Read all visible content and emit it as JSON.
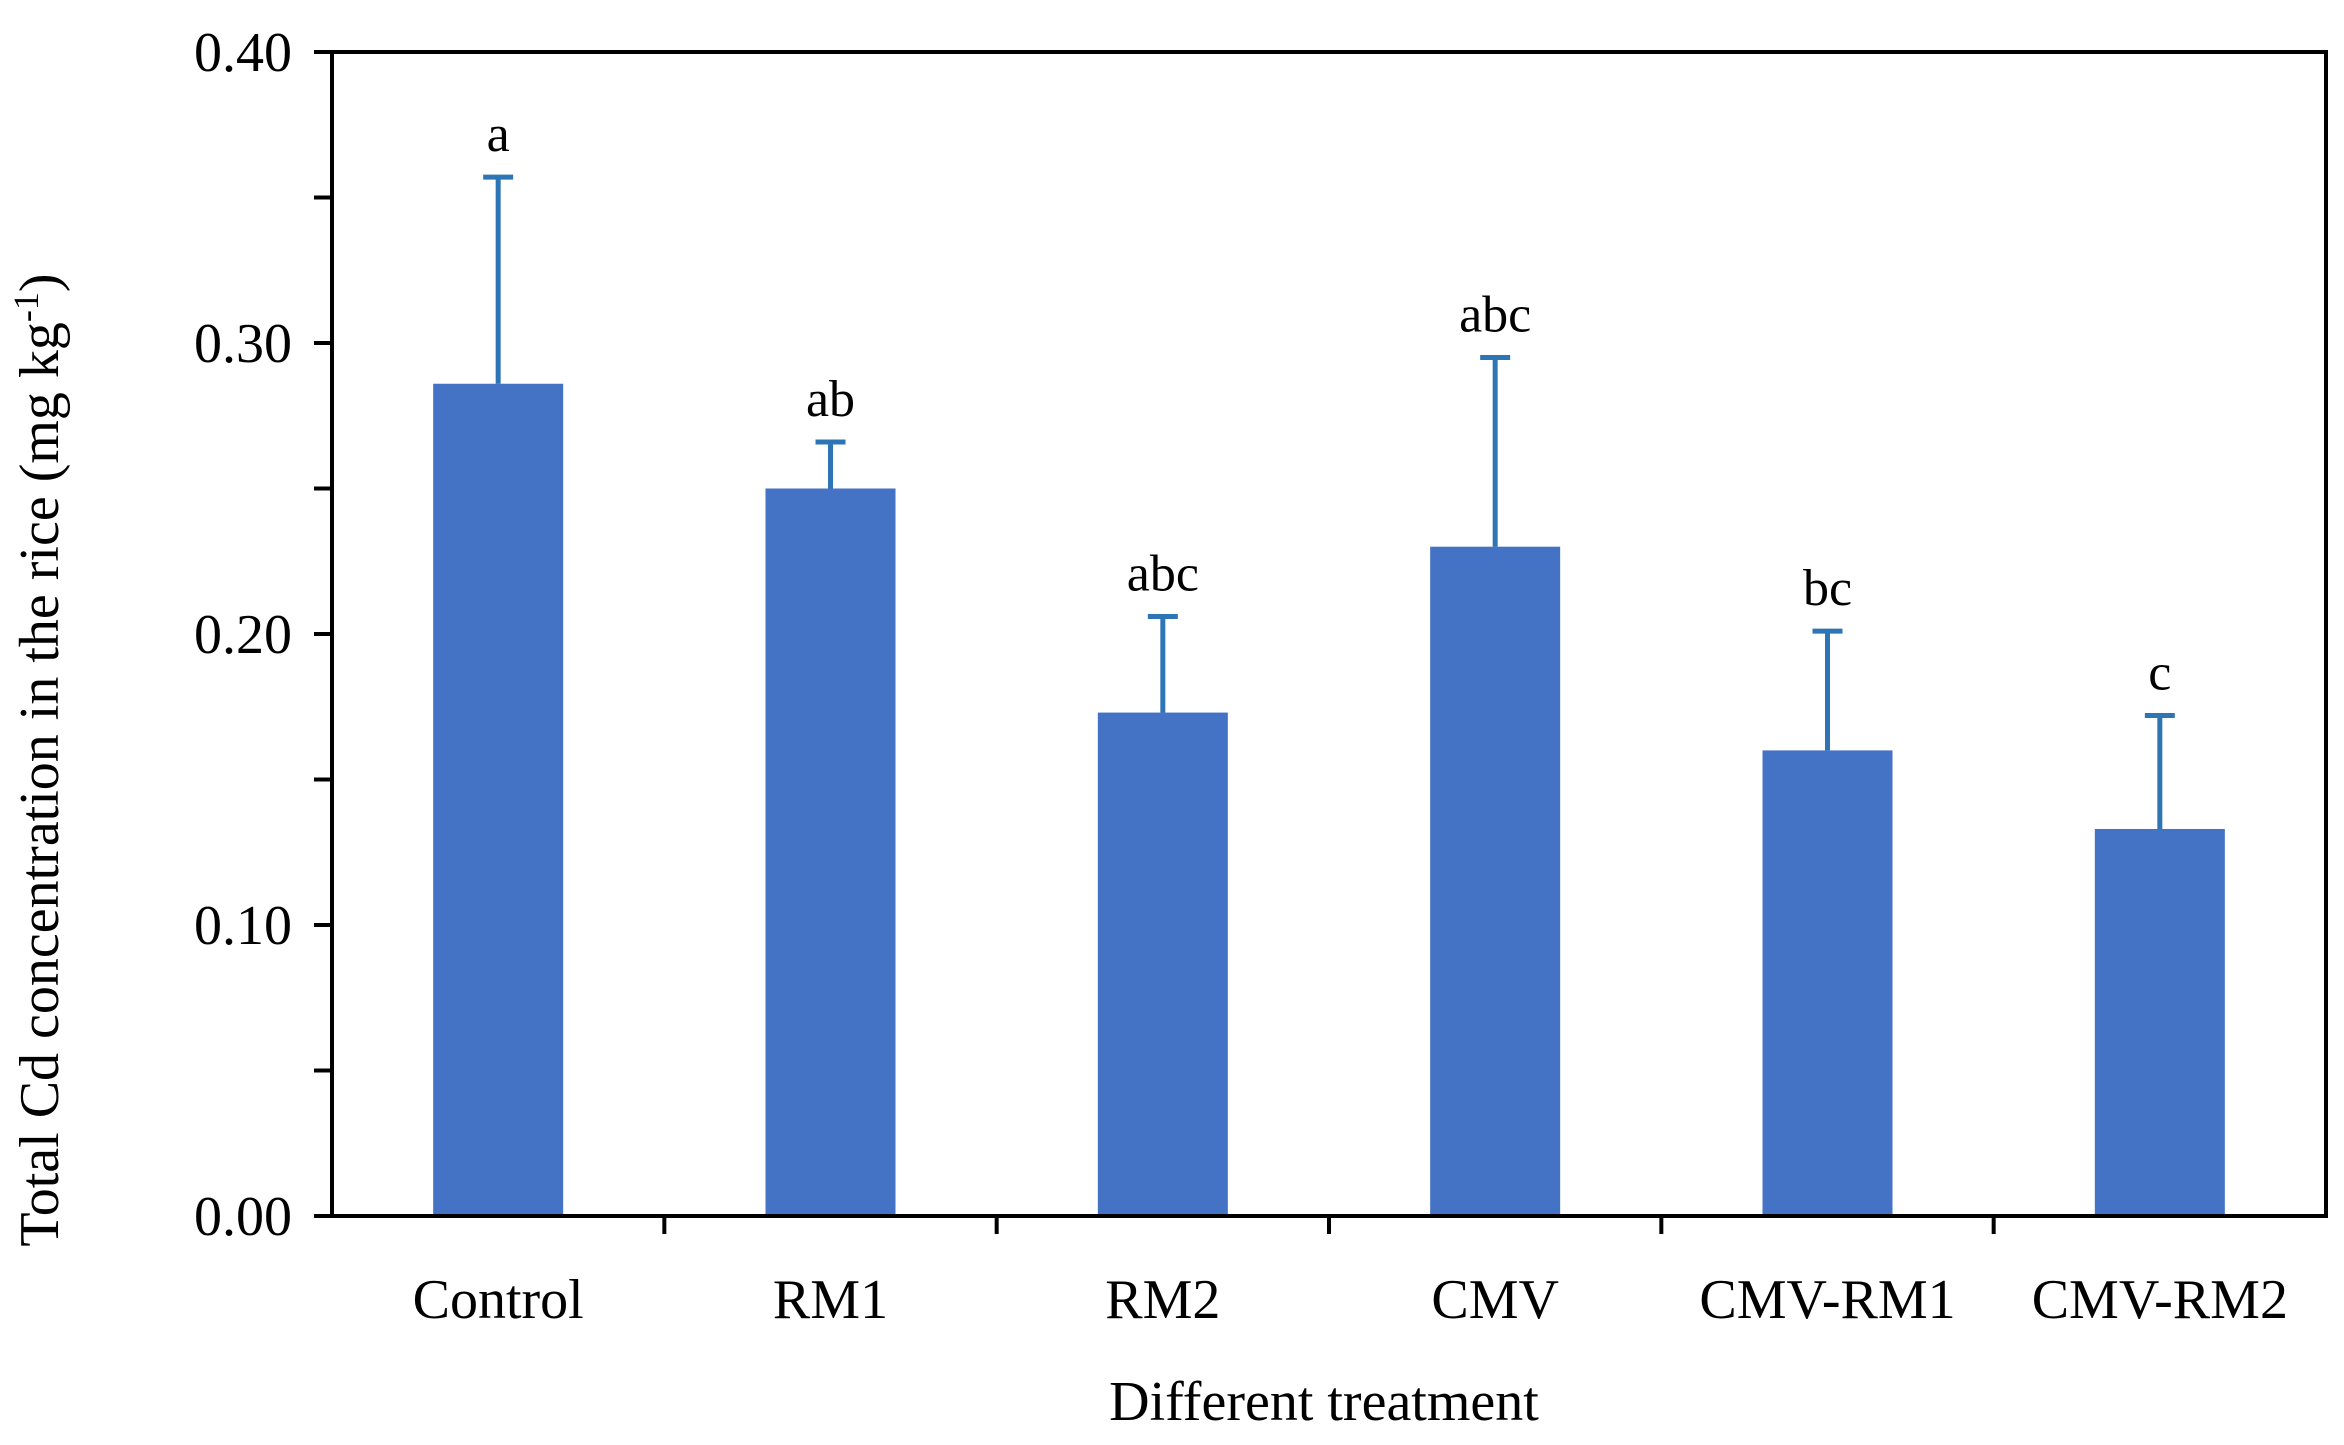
{
  "chart_data": {
    "type": "bar",
    "title": "",
    "xlabel": "Different treatment",
    "ylabel_main": "Total Cd concentration in the rice (mg kg",
    "ylabel_sup": "-1",
    "ylabel_close": ")",
    "ylim": [
      0,
      0.4
    ],
    "yticks": [
      "0.00",
      "0.10",
      "0.20",
      "0.30",
      "0.40"
    ],
    "ytick_values": [
      0,
      0.1,
      0.2,
      0.3,
      0.4
    ],
    "y_minor_ticks": [
      0.05,
      0.15,
      0.25,
      0.35
    ],
    "categories": [
      "Control",
      "RM1",
      "RM2",
      "CMV",
      "CMV-RM1",
      "CMV-RM2"
    ],
    "values": [
      0.286,
      0.25,
      0.173,
      0.23,
      0.16,
      0.133
    ],
    "errors": [
      0.071,
      0.016,
      0.033,
      0.065,
      0.041,
      0.039
    ],
    "significance": [
      "a",
      "ab",
      "abc",
      "abc",
      "bc",
      "c"
    ],
    "bar_color": "#4472C4",
    "error_color": "#2E75B6",
    "axis_color": "#000000"
  }
}
